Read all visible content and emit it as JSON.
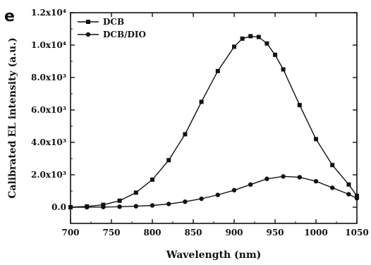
{
  "panel_letter": "e",
  "chart_data": {
    "type": "line",
    "xlabel": "Wavelength (nm)",
    "ylabel": "Calibrated EL intensity (a.u.)",
    "xlim": [
      700,
      1050
    ],
    "ylim": [
      -1000,
      12000
    ],
    "x_ticks": [
      700,
      750,
      800,
      850,
      900,
      950,
      1000,
      1050
    ],
    "x_tick_labels": [
      "700",
      "750",
      "800",
      "850",
      "900",
      "950",
      "1000",
      "1050"
    ],
    "y_ticks": [
      0,
      2000,
      4000,
      6000,
      8000,
      10000,
      12000
    ],
    "y_tick_labels": [
      "0.0",
      "2.0x10³",
      "4.0x10³",
      "6.0x10³",
      "8.0x10³",
      "1.0x10⁴",
      "1.2x10⁴"
    ],
    "legend_position": "top-left",
    "series": [
      {
        "name": "DCB",
        "marker": "square",
        "color": "#111111",
        "x": [
          700,
          720,
          740,
          760,
          780,
          800,
          820,
          840,
          860,
          880,
          900,
          910,
          920,
          930,
          940,
          950,
          960,
          980,
          1000,
          1020,
          1040,
          1050
        ],
        "y": [
          0,
          50,
          150,
          400,
          900,
          1700,
          2900,
          4500,
          6500,
          8400,
          9900,
          10400,
          10550,
          10500,
          10100,
          9400,
          8500,
          6300,
          4200,
          2600,
          1400,
          700
        ]
      },
      {
        "name": "DCB/DIO",
        "marker": "circle",
        "color": "#111111",
        "x": [
          700,
          720,
          740,
          760,
          780,
          800,
          820,
          840,
          860,
          880,
          900,
          920,
          940,
          960,
          980,
          1000,
          1020,
          1040,
          1050
        ],
        "y": [
          0,
          0,
          10,
          30,
          60,
          110,
          200,
          340,
          520,
          760,
          1050,
          1400,
          1750,
          1900,
          1850,
          1600,
          1200,
          800,
          550
        ]
      }
    ]
  }
}
